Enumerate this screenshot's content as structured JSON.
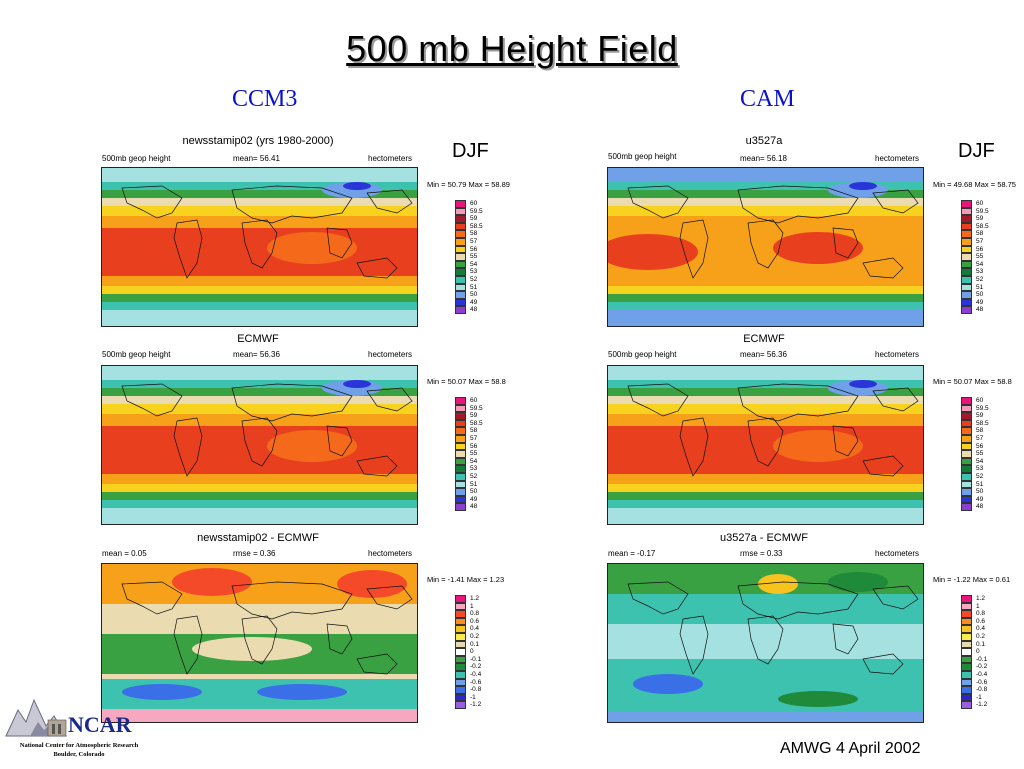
{
  "slide": {
    "title": "500 mb Height Field",
    "left_column": "CCM3",
    "right_column": "CAM",
    "footer": "AMWG 4 April 2002",
    "logo": {
      "name": "NCAR",
      "line1": "National Center for Atmospheric Research",
      "line2": "Boulder, Colorado"
    }
  },
  "season": "DJF",
  "height_legend": [
    "60",
    "59.5",
    "59",
    "58.5",
    "58",
    "57",
    "56",
    "55",
    "54",
    "53",
    "52",
    "51",
    "50",
    "49",
    "48"
  ],
  "diff_legend": [
    "1.2",
    "1",
    "0.8",
    "0.6",
    "0.4",
    "0.2",
    "0.1",
    "0",
    "-0.1",
    "-0.2",
    "-0.4",
    "-0.6",
    "-0.8",
    "-1",
    "-1.2"
  ],
  "height_colors": [
    "#e8157d",
    "#f59ab6",
    "#a01a2a",
    "#e8401e",
    "#f56a1a",
    "#f7a11a",
    "#f7d21e",
    "#eadcb0",
    "#3aa142",
    "#167a3a",
    "#3ec2b0",
    "#a5e1e1",
    "#6fa0e8",
    "#2a35d8",
    "#8a3fd0"
  ],
  "diff_colors": [
    "#e8157d",
    "#f5a8c0",
    "#f44a2a",
    "#f98c1e",
    "#f7c31e",
    "#f7ec4a",
    "#e8d8b0",
    "#ffffff",
    "#3aa142",
    "#1e8a3a",
    "#3ec2b0",
    "#6fa0e8",
    "#3a6fe8",
    "#2a28c8",
    "#9a5fe0"
  ],
  "panels": {
    "ccm3_model": {
      "title": "newsstamip02 (yrs 1980-2000)",
      "left": "500mb geop height",
      "mid": "mean= 56.41",
      "right": "hectometers",
      "minmax": "Min = 50.79 Max = 58.89"
    },
    "ccm3_ecmwf": {
      "title": "ECMWF",
      "left": "500mb geop height",
      "mid": "mean= 56.36",
      "right": "hectometers",
      "minmax": "Min = 50.07 Max = 58.8"
    },
    "ccm3_diff": {
      "title": "newsstamip02 - ECMWF",
      "left": "mean = 0.05",
      "mid": "rmse = 0.36",
      "right": "hectometers",
      "minmax": "Min = -1.41 Max = 1.23"
    },
    "cam_model": {
      "title": "u3527a",
      "left": "500mb geop height",
      "mid": "mean= 56.18",
      "right": "hectometers",
      "minmax": "Min = 49.68 Max = 58.75"
    },
    "cam_ecmwf": {
      "title": "ECMWF",
      "left": "500mb geop height",
      "mid": "mean= 56.36",
      "right": "hectometers",
      "minmax": "Min = 50.07 Max = 58.8"
    },
    "cam_diff": {
      "title": "u3527a - ECMWF",
      "left": "mean = -0.17",
      "mid": "rmse = 0.33",
      "right": "hectometers",
      "minmax": "Min = -1.22 Max = 0.61"
    }
  }
}
